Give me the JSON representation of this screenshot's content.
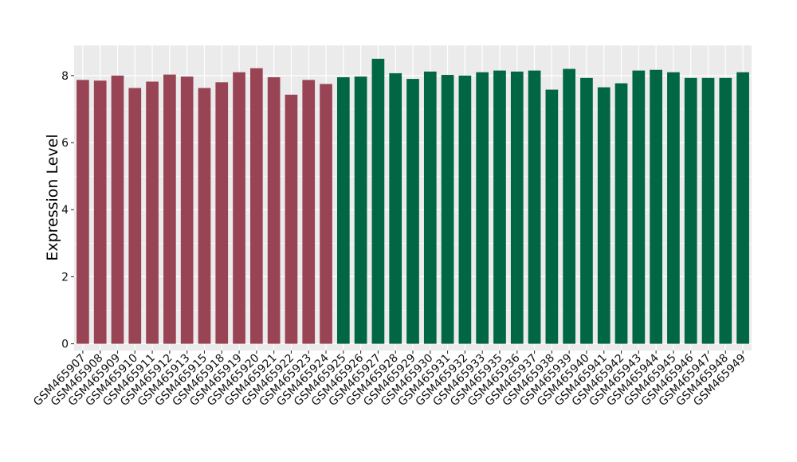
{
  "chart_data": {
    "type": "bar",
    "title": "",
    "xlabel": "",
    "ylabel": "Expression Level",
    "ylim": [
      -0.2,
      8.9
    ],
    "y_ticks": [
      "0",
      "2",
      "4",
      "6",
      "8"
    ],
    "grid": true,
    "legend": "none",
    "categories": [
      "GSM465907",
      "GSM465908",
      "GSM465909",
      "GSM465910",
      "GSM465911",
      "GSM465912",
      "GSM465913",
      "GSM465915",
      "GSM465918",
      "GSM465919",
      "GSM465920",
      "GSM465921",
      "GSM465922",
      "GSM465923",
      "GSM465924",
      "GSM465925",
      "GSM465926",
      "GSM465927",
      "GSM465928",
      "GSM465929",
      "GSM465930",
      "GSM465931",
      "GSM465932",
      "GSM465933",
      "GSM465935",
      "GSM465936",
      "GSM465937",
      "GSM465938",
      "GSM465939",
      "GSM465940",
      "GSM465941",
      "GSM465942",
      "GSM465943",
      "GSM465944",
      "GSM465945",
      "GSM465946",
      "GSM465947",
      "GSM465948",
      "GSM465949"
    ],
    "values": [
      7.87,
      7.85,
      8.0,
      7.63,
      7.82,
      8.03,
      7.97,
      7.63,
      7.8,
      8.1,
      8.22,
      7.95,
      7.43,
      7.87,
      7.75,
      7.95,
      7.97,
      8.5,
      8.07,
      7.9,
      8.12,
      8.02,
      8.0,
      8.1,
      8.15,
      8.12,
      8.15,
      7.58,
      8.2,
      7.93,
      7.65,
      7.77,
      8.15,
      8.17,
      8.1,
      7.93,
      7.93,
      7.93,
      8.1
    ],
    "group_sizes": [
      15,
      24
    ],
    "colors": {
      "group_1": "#994455",
      "group_2": "#006644",
      "panel_background": "#ebebeb",
      "grid_line": "#ffffff"
    }
  }
}
